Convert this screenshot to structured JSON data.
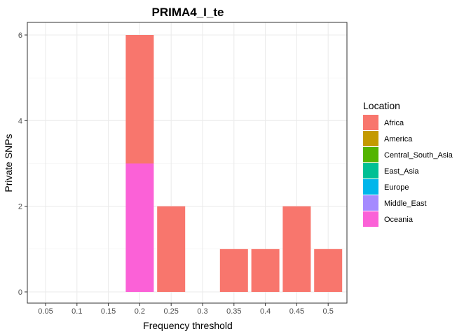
{
  "chart_data": {
    "type": "bar",
    "stacked": true,
    "title": "PRIMA4_I_te",
    "xlabel": "Frequency threshold",
    "ylabel": "Private SNPs",
    "categories": [
      "0.05",
      "0.1",
      "0.15",
      "0.2",
      "0.25",
      "0.3",
      "0.35",
      "0.4",
      "0.45",
      "0.5"
    ],
    "yticks": [
      0,
      2,
      4,
      6
    ],
    "ylim": [
      0,
      6
    ],
    "grid": true,
    "legend": {
      "title": "Location",
      "placement": "right",
      "entries": [
        {
          "name": "Africa",
          "color": "#F8766D"
        },
        {
          "name": "America",
          "color": "#C49A00"
        },
        {
          "name": "Central_South_Asia",
          "color": "#53B400"
        },
        {
          "name": "East_Asia",
          "color": "#00C094"
        },
        {
          "name": "Europe",
          "color": "#00B6EB"
        },
        {
          "name": "Middle_East",
          "color": "#A58AFF"
        },
        {
          "name": "Oceania",
          "color": "#FB61D7"
        }
      ]
    },
    "series": [
      {
        "name": "Africa",
        "color": "#F8766D",
        "values": [
          0,
          0,
          0,
          3,
          2,
          0,
          1,
          1,
          2,
          1
        ]
      },
      {
        "name": "Oceania",
        "color": "#FB61D7",
        "values": [
          0,
          0,
          0,
          3,
          0,
          0,
          0,
          0,
          0,
          0
        ]
      }
    ]
  }
}
